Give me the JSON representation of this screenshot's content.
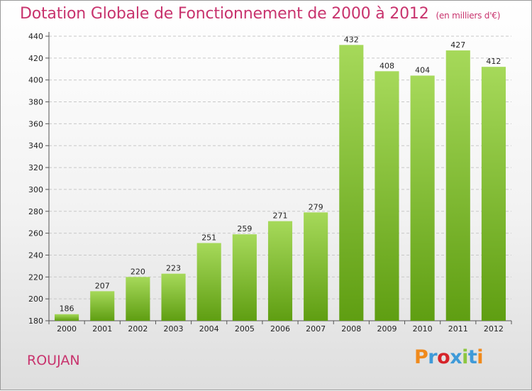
{
  "header": {
    "title": "Dotation Globale de Fonctionnement de 2000 à 2012",
    "unit": "(en milliers d'€)"
  },
  "footer": {
    "place": "ROUJAN",
    "logo_text": "Proxiti",
    "logo_colors": [
      "#f08a1c",
      "#3f9ad8",
      "#d6242a",
      "#3f9ad8",
      "#8cc63f",
      "#3f9ad8",
      "#f08a1c"
    ]
  },
  "colors": {
    "bar_top": "#a6d95a",
    "bar_bottom": "#5f9e12",
    "grid": "#c8c8c8",
    "title": "#c8336d"
  },
  "chart_data": {
    "type": "bar",
    "title": "Dotation Globale de Fonctionnement de 2000 à 2012",
    "subtitle": "(en milliers d'€)",
    "xlabel": "",
    "ylabel": "",
    "categories": [
      "2000",
      "2001",
      "2002",
      "2003",
      "2004",
      "2005",
      "2006",
      "2007",
      "2008",
      "2009",
      "2010",
      "2011",
      "2012"
    ],
    "values": [
      186,
      207,
      220,
      223,
      251,
      259,
      271,
      279,
      432,
      408,
      404,
      427,
      412
    ],
    "ylim": [
      180,
      440
    ],
    "yticks": [
      180,
      200,
      220,
      240,
      260,
      280,
      300,
      320,
      340,
      360,
      380,
      400,
      420,
      440
    ],
    "grid": true,
    "legend": "none"
  }
}
